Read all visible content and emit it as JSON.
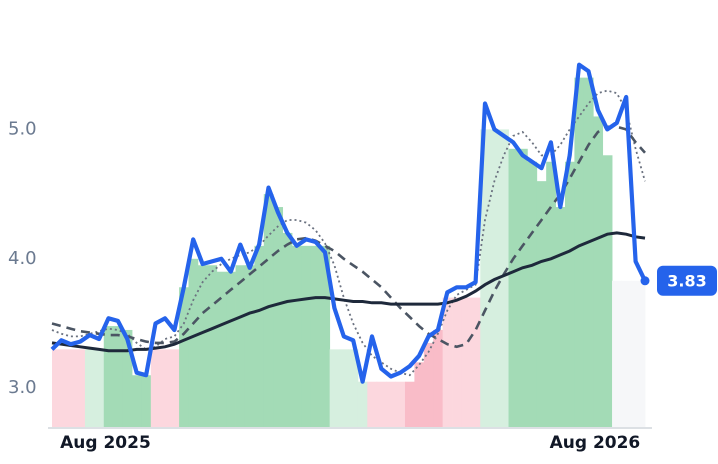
{
  "chart_data": {
    "type": "line",
    "categories": [
      null,
      null,
      null,
      null,
      null,
      null,
      "Aug 2025",
      null,
      null,
      null,
      null,
      null,
      null,
      null,
      null,
      null,
      null,
      null,
      null,
      null,
      null,
      null,
      null,
      null,
      null,
      null,
      null,
      null,
      null,
      null,
      null,
      null,
      null,
      null,
      null,
      null,
      null,
      null,
      null,
      null,
      null,
      null,
      null,
      null,
      null,
      null,
      null,
      null,
      null,
      null,
      null,
      null,
      null,
      null,
      null,
      null,
      null,
      null,
      "Aug 2026",
      null,
      null,
      null,
      null,
      null
    ],
    "ylim": [
      2.7,
      6.0
    ],
    "yticks": [
      {
        "value": 3,
        "label": "3.0"
      },
      {
        "value": 4,
        "label": "4.0"
      },
      {
        "value": 5,
        "label": "5.0"
      }
    ],
    "grid": false,
    "bars": {
      "values": [
        3.3,
        3.3,
        3.3,
        3.3,
        3.3,
        3.3,
        3.48,
        3.48,
        3.45,
        3.1,
        3.1,
        3.3,
        3.3,
        3.3,
        3.78,
        4.0,
        3.95,
        3.95,
        3.9,
        3.9,
        3.95,
        3.95,
        4.1,
        4.5,
        4.4,
        4.2,
        4.1,
        4.1,
        4.1,
        4.1,
        3.3,
        3.3,
        3.3,
        3.05,
        3.05,
        3.05,
        3.05,
        3.05,
        3.05,
        3.2,
        3.35,
        3.45,
        3.7,
        3.7,
        3.7,
        3.7,
        5.0,
        5.0,
        5.0,
        4.85,
        4.85,
        4.75,
        4.6,
        4.75,
        4.4,
        4.75,
        5.4,
        5.4,
        5.1,
        4.8,
        3.83,
        3.83,
        3.83,
        3.83
      ],
      "colors": [
        "#fcd7de",
        "#fcd7de",
        "#fcd7de",
        "#fcd7de",
        "#d6efdf",
        "#d6efdf",
        "#a3dbb6",
        "#a3dbb6",
        "#a3dbb6",
        "#a3dbb6",
        "#a3dbb6",
        "#fcd7de",
        "#fcd7de",
        "#fcd7de",
        "#a3dbb6",
        "#a3dbb6",
        "#a3dbb6",
        "#a3dbb6",
        "#a3dbb6",
        "#a3dbb6",
        "#a3dbb6",
        "#a3dbb6",
        "#a3dbb6",
        "#a3dbb6",
        "#a3dbb6",
        "#a3dbb6",
        "#a3dbb6",
        "#a3dbb6",
        "#a3dbb6",
        "#a3dbb6",
        "#d6efdf",
        "#d6efdf",
        "#d6efdf",
        "#d6efdf",
        "#fcd7de",
        "#fcd7de",
        "#fcd7de",
        "#fcd7de",
        "#f9bcc8",
        "#f9bcc8",
        "#f9bcc8",
        "#f9bcc8",
        "#fcd7de",
        "#fcd7de",
        "#fcd7de",
        "#fcd7de",
        "#d6efdf",
        "#d6efdf",
        "#d6efdf",
        "#a3dbb6",
        "#a3dbb6",
        "#a3dbb6",
        "#a3dbb6",
        "#a3dbb6",
        "#a3dbb6",
        "#a3dbb6",
        "#a3dbb6",
        "#a3dbb6",
        "#a3dbb6",
        "#a3dbb6",
        "#f6f7f9",
        "#f6f7f9",
        "#f6f7f9",
        "#f6f7f9"
      ]
    },
    "series": [
      {
        "color": "#6b7280",
        "style": "dotted",
        "values": [
          3.45,
          3.42,
          3.4,
          3.4,
          3.42,
          3.44,
          3.46,
          3.45,
          3.42,
          3.35,
          3.3,
          3.32,
          3.38,
          3.4,
          3.5,
          3.68,
          3.82,
          3.9,
          3.96,
          4.0,
          4.03,
          4.05,
          4.1,
          4.18,
          4.25,
          4.3,
          4.3,
          4.28,
          4.22,
          4.12,
          3.95,
          3.7,
          3.5,
          3.35,
          3.25,
          3.2,
          3.15,
          3.12,
          3.1,
          3.18,
          3.28,
          3.42,
          3.6,
          3.72,
          3.76,
          3.8,
          4.3,
          4.6,
          4.8,
          4.95,
          4.98,
          4.9,
          4.8,
          4.8,
          4.88,
          5.0,
          5.1,
          5.2,
          5.28,
          5.3,
          5.28,
          5.15,
          4.85,
          4.6
        ]
      },
      {
        "color": "#4b5563",
        "style": "dashed",
        "values": [
          3.5,
          3.48,
          3.46,
          3.44,
          3.43,
          3.42,
          3.41,
          3.41,
          3.4,
          3.38,
          3.36,
          3.35,
          3.35,
          3.36,
          3.42,
          3.5,
          3.58,
          3.64,
          3.7,
          3.76,
          3.82,
          3.88,
          3.94,
          4.0,
          4.06,
          4.11,
          4.15,
          4.16,
          4.14,
          4.1,
          4.06,
          4.0,
          3.95,
          3.9,
          3.84,
          3.78,
          3.7,
          3.62,
          3.55,
          3.48,
          3.42,
          3.38,
          3.34,
          3.32,
          3.34,
          3.45,
          3.6,
          3.75,
          3.88,
          4.0,
          4.1,
          4.2,
          4.3,
          4.4,
          4.5,
          4.62,
          4.75,
          4.88,
          4.98,
          5.02,
          5.02,
          5.0,
          4.9,
          4.82
        ]
      },
      {
        "color": "#1e293b",
        "style": "solid",
        "values": [
          3.35,
          3.34,
          3.33,
          3.32,
          3.31,
          3.3,
          3.29,
          3.29,
          3.29,
          3.3,
          3.3,
          3.31,
          3.32,
          3.34,
          3.37,
          3.4,
          3.43,
          3.46,
          3.49,
          3.52,
          3.55,
          3.58,
          3.6,
          3.63,
          3.65,
          3.67,
          3.68,
          3.69,
          3.7,
          3.7,
          3.69,
          3.68,
          3.67,
          3.67,
          3.66,
          3.66,
          3.65,
          3.65,
          3.65,
          3.65,
          3.65,
          3.65,
          3.66,
          3.68,
          3.71,
          3.75,
          3.8,
          3.84,
          3.87,
          3.9,
          3.93,
          3.95,
          3.98,
          4.0,
          4.03,
          4.06,
          4.1,
          4.13,
          4.16,
          4.19,
          4.2,
          4.19,
          4.17,
          4.16
        ]
      },
      {
        "color": "#2563eb",
        "style": "price",
        "values": [
          3.3,
          3.37,
          3.34,
          3.36,
          3.41,
          3.38,
          3.54,
          3.52,
          3.38,
          3.12,
          3.1,
          3.5,
          3.54,
          3.45,
          3.78,
          4.15,
          3.96,
          3.98,
          4.0,
          3.9,
          4.11,
          3.93,
          4.11,
          4.55,
          4.36,
          4.2,
          4.1,
          4.15,
          4.13,
          4.05,
          3.62,
          3.4,
          3.37,
          3.05,
          3.4,
          3.15,
          3.09,
          3.12,
          3.17,
          3.25,
          3.4,
          3.45,
          3.74,
          3.78,
          3.78,
          3.82,
          5.2,
          5.0,
          4.95,
          4.9,
          4.8,
          4.75,
          4.7,
          4.9,
          4.4,
          4.8,
          5.5,
          5.45,
          5.15,
          5.0,
          5.05,
          5.25,
          3.98,
          3.83
        ]
      }
    ]
  }
}
